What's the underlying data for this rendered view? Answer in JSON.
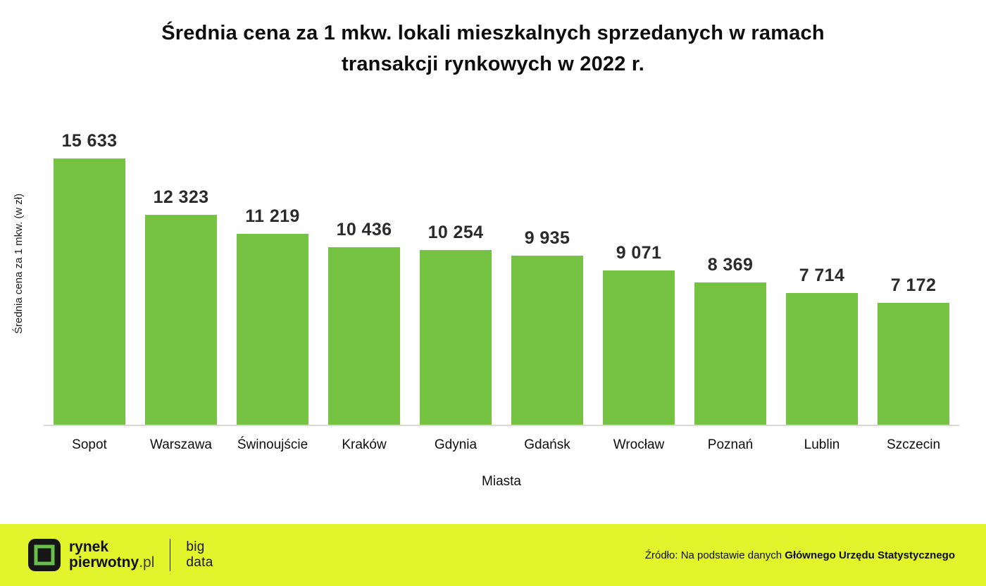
{
  "chart_data": {
    "type": "bar",
    "title": "Średnia cena za 1 mkw. lokali mieszkalnych sprzedanych w ramach transakcji rynkowych w 2022 r.",
    "categories": [
      "Sopot",
      "Warszawa",
      "Świnoujście",
      "Kraków",
      "Gdynia",
      "Gdańsk",
      "Wrocław",
      "Poznań",
      "Lublin",
      "Szczecin"
    ],
    "values": [
      15633,
      12323,
      11219,
      10436,
      10254,
      9935,
      9071,
      8369,
      7714,
      7172
    ],
    "value_labels": [
      "15 633",
      "12 323",
      "11 219",
      "10 436",
      "10 254",
      "9 935",
      "9 071",
      "8 369",
      "7 714",
      "7 172"
    ],
    "xlabel": "Miasta",
    "ylabel": "Średnia cena za 1 mkw. (w zł)",
    "ylim": [
      0,
      15633
    ],
    "bar_color": "#76c344",
    "grid": false,
    "legend": false
  },
  "footer": {
    "background": "#e2f52c",
    "logo": {
      "brand_line1": "rynek",
      "brand_line2_bold": "pierwotny",
      "brand_line2_suffix": ".pl",
      "sub_line1": "big",
      "sub_line2": "data",
      "icon_color": "#6abf4b",
      "icon_bg": "#161616"
    },
    "source_prefix": "Źródło: Na podstawie danych ",
    "source_bold": "Głównego Urzędu Statystycznego"
  }
}
